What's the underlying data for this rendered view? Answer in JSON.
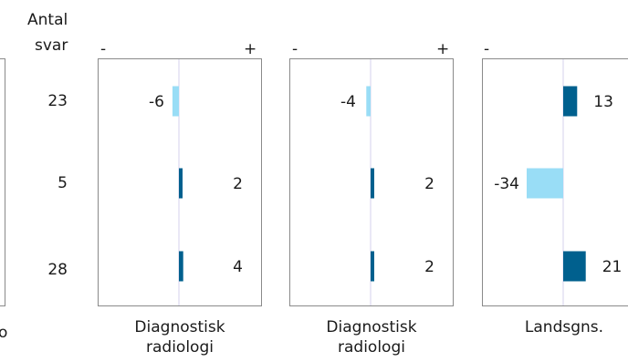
{
  "header": {
    "count_label_line1": "Antal",
    "count_label_line2": "svar"
  },
  "left_cut_label": "o",
  "colors": {
    "negative": "#99ddf6",
    "positive": "#00608e",
    "zero_line": "#dedcf0",
    "frame": "#8a8a8a"
  },
  "chart_data": {
    "type": "bar",
    "orientation": "horizontal-diverging",
    "rows": [
      "row-1",
      "row-2",
      "row-3"
    ],
    "answer_counts": [
      "23",
      "5",
      "28"
    ],
    "panels": [
      {
        "title": "Diagnostisk radiologi",
        "title_line1": "Diagnostisk",
        "title_line2": "radiologi",
        "minus_label": "-",
        "plus_label": "+",
        "values": [
          -6,
          2,
          4
        ],
        "xlim": [
          -40,
          40
        ]
      },
      {
        "title": "Diagnostisk radiologi",
        "title_line1": "Diagnostisk",
        "title_line2": "radiologi",
        "minus_label": "-",
        "plus_label": "+",
        "values": [
          -4,
          2,
          2
        ],
        "xlim": [
          -40,
          40
        ]
      },
      {
        "title": "Landsgns.",
        "title_line1": "Landsgns.",
        "title_line2": "",
        "minus_label": "-",
        "plus_label": "",
        "values": [
          13,
          -34,
          21
        ],
        "xlim": [
          -40,
          40
        ]
      }
    ]
  }
}
